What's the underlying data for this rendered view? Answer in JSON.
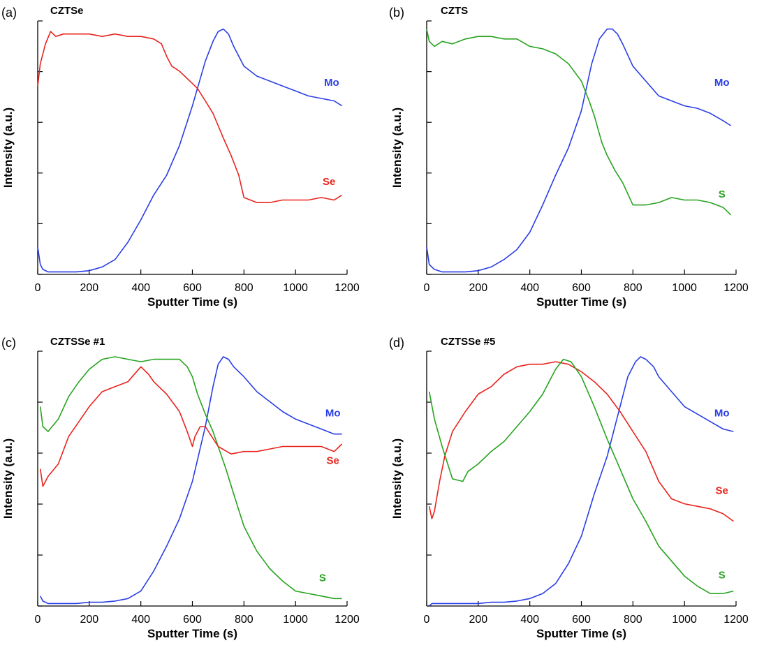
{
  "colors": {
    "Mo": "#2a3ee6",
    "Se": "#e8231d",
    "S": "#27a31f"
  },
  "chart_data": [
    {
      "type": "line",
      "letter": "(a)",
      "title": "CZTSe",
      "xlabel": "Sputter Time (s)",
      "ylabel": "Intensity (a.u.)",
      "xlim": [
        0,
        1200
      ],
      "ylim": [
        0,
        100
      ],
      "xticks": [
        "0",
        "200",
        "400",
        "600",
        "800",
        "1000",
        "1200"
      ],
      "series": [
        {
          "name": "Mo",
          "color": "#2a3ee6",
          "label_at": [
            1140,
            76
          ],
          "x": [
            0,
            10,
            20,
            40,
            60,
            100,
            150,
            200,
            250,
            300,
            350,
            400,
            450,
            500,
            550,
            600,
            650,
            680,
            700,
            720,
            740,
            760,
            800,
            850,
            900,
            950,
            1000,
            1050,
            1100,
            1150,
            1180
          ],
          "y": [
            11,
            4,
            2,
            1,
            1,
            1,
            1,
            1.5,
            3,
            6,
            13,
            22,
            32,
            40,
            52,
            68,
            86,
            94,
            98,
            99,
            97,
            92,
            84,
            80,
            78,
            76,
            74,
            72,
            71,
            70,
            68
          ]
        },
        {
          "name": "Se",
          "color": "#e8231d",
          "label_at": [
            1130,
            36
          ],
          "x": [
            0,
            10,
            30,
            50,
            70,
            100,
            150,
            200,
            250,
            300,
            350,
            400,
            450,
            480,
            500,
            520,
            550,
            580,
            600,
            620,
            650,
            680,
            700,
            720,
            750,
            780,
            800,
            850,
            900,
            950,
            1000,
            1050,
            1100,
            1150,
            1180
          ],
          "y": [
            76,
            85,
            93,
            98,
            96,
            97,
            97,
            97,
            96,
            97,
            96,
            96,
            95,
            93,
            88,
            84,
            82,
            79,
            77,
            75,
            70,
            65,
            60,
            55,
            48,
            40,
            31,
            29,
            29,
            30,
            30,
            30,
            31,
            30,
            32
          ]
        }
      ]
    },
    {
      "type": "line",
      "letter": "(b)",
      "title": "CZTS",
      "xlabel": "Sputter Time (s)",
      "ylabel": "Intensity (a.u.)",
      "xlim": [
        0,
        1200
      ],
      "ylim": [
        0,
        100
      ],
      "xticks": [
        "0",
        "200",
        "400",
        "600",
        "800",
        "1000",
        "1200"
      ],
      "series": [
        {
          "name": "Mo",
          "color": "#2a3ee6",
          "label_at": [
            1145,
            76
          ],
          "x": [
            0,
            10,
            30,
            60,
            100,
            150,
            200,
            250,
            300,
            350,
            400,
            450,
            500,
            550,
            600,
            640,
            670,
            700,
            720,
            740,
            760,
            800,
            850,
            900,
            950,
            1000,
            1050,
            1100,
            1150,
            1180
          ],
          "y": [
            11,
            4,
            2,
            1,
            1,
            1,
            1.5,
            3,
            6,
            10,
            17,
            28,
            40,
            51,
            66,
            85,
            95,
            99,
            99,
            97,
            93,
            84,
            78,
            72,
            70,
            68,
            67,
            65,
            62,
            60
          ]
        },
        {
          "name": "S",
          "color": "#27a31f",
          "label_at": [
            1145,
            31
          ],
          "x": [
            0,
            10,
            30,
            60,
            100,
            150,
            200,
            250,
            300,
            350,
            400,
            450,
            500,
            550,
            600,
            630,
            650,
            680,
            700,
            730,
            760,
            800,
            850,
            900,
            950,
            1000,
            1050,
            1100,
            1150,
            1180
          ],
          "y": [
            99,
            94,
            92,
            94,
            93,
            95,
            96,
            96,
            95,
            95,
            92,
            91,
            89,
            85,
            78,
            70,
            64,
            53,
            48,
            42,
            37,
            28,
            28,
            29,
            31,
            30,
            30,
            29,
            27,
            24
          ]
        }
      ]
    },
    {
      "type": "line",
      "letter": "(c)",
      "title": "CZTSSe #1",
      "xlabel": "Sputter Time (s)",
      "ylabel": "Intensity (a.u.)",
      "xlim": [
        0,
        1200
      ],
      "ylim": [
        0,
        100
      ],
      "xticks": [
        "0",
        "200",
        "400",
        "600",
        "800",
        "1000",
        "1200"
      ],
      "series": [
        {
          "name": "Mo",
          "color": "#2a3ee6",
          "label_at": [
            1145,
            76
          ],
          "x": [
            10,
            20,
            40,
            80,
            150,
            200,
            250,
            300,
            350,
            400,
            450,
            500,
            550,
            600,
            650,
            680,
            700,
            720,
            740,
            760,
            800,
            850,
            900,
            950,
            1000,
            1050,
            1100,
            1150,
            1180
          ],
          "y": [
            4,
            2,
            1,
            1,
            1,
            1.5,
            1.5,
            2,
            3,
            6,
            14,
            24,
            35,
            50,
            72,
            88,
            97,
            100,
            99,
            96,
            92,
            86,
            82,
            78,
            75,
            73,
            71,
            69,
            69
          ]
        },
        {
          "name": "S",
          "color": "#27a31f",
          "label_at": [
            1105,
            10
          ],
          "x": [
            10,
            20,
            40,
            80,
            120,
            160,
            200,
            250,
            300,
            350,
            400,
            450,
            500,
            550,
            580,
            600,
            620,
            650,
            680,
            700,
            730,
            760,
            800,
            850,
            900,
            950,
            1000,
            1050,
            1100,
            1150,
            1180
          ],
          "y": [
            80,
            72,
            70,
            75,
            84,
            90,
            95,
            99,
            100,
            99,
            98,
            99,
            99,
            99,
            96,
            92,
            85,
            77,
            70,
            64,
            55,
            45,
            32,
            22,
            15,
            10,
            6,
            5,
            4,
            3,
            3
          ]
        },
        {
          "name": "Se",
          "color": "#e8231d",
          "label_at": [
            1145,
            57
          ],
          "x": [
            10,
            20,
            40,
            80,
            120,
            160,
            200,
            250,
            300,
            350,
            400,
            430,
            450,
            500,
            550,
            580,
            600,
            610,
            630,
            650,
            700,
            750,
            800,
            850,
            900,
            950,
            1000,
            1050,
            1100,
            1150,
            1180
          ],
          "y": [
            55,
            48,
            52,
            57,
            68,
            74,
            80,
            86,
            88,
            90,
            96,
            93,
            90,
            85,
            78,
            70,
            64,
            68,
            72,
            72,
            64,
            61,
            62,
            62,
            63,
            64,
            64,
            64,
            64,
            62,
            65
          ]
        }
      ]
    },
    {
      "type": "line",
      "letter": "(d)",
      "title": "CZTSSe #5",
      "xlabel": "Sputter Time (s)",
      "ylabel": "Intensity (a.u.)",
      "xlim": [
        0,
        1200
      ],
      "ylim": [
        0,
        100
      ],
      "xticks": [
        "0",
        "200",
        "400",
        "600",
        "800",
        "1000",
        "1200"
      ],
      "series": [
        {
          "name": "Mo",
          "color": "#2a3ee6",
          "label_at": [
            1145,
            76
          ],
          "x": [
            10,
            20,
            40,
            80,
            150,
            200,
            250,
            300,
            350,
            400,
            450,
            500,
            550,
            600,
            650,
            700,
            750,
            780,
            810,
            830,
            850,
            880,
            900,
            950,
            1000,
            1050,
            1100,
            1150,
            1190
          ],
          "y": [
            0,
            1,
            1,
            1,
            1,
            1,
            1.5,
            1.5,
            2,
            3,
            5,
            9,
            17,
            28,
            45,
            60,
            80,
            92,
            98,
            100,
            99,
            96,
            92,
            86,
            80,
            77,
            74,
            71,
            70
          ]
        },
        {
          "name": "Se",
          "color": "#e8231d",
          "label_at": [
            1145,
            45
          ],
          "x": [
            10,
            20,
            30,
            50,
            70,
            100,
            150,
            200,
            250,
            300,
            350,
            400,
            450,
            500,
            550,
            600,
            650,
            700,
            750,
            800,
            850,
            900,
            950,
            1000,
            1050,
            1100,
            1150,
            1190
          ],
          "y": [
            40,
            35,
            38,
            50,
            60,
            70,
            78,
            85,
            88,
            93,
            96,
            97,
            97,
            98,
            97,
            94,
            90,
            85,
            78,
            70,
            62,
            50,
            43,
            41,
            40,
            39,
            37,
            34
          ]
        },
        {
          "name": "S",
          "color": "#27a31f",
          "label_at": [
            1145,
            11
          ],
          "x": [
            10,
            30,
            60,
            100,
            140,
            160,
            200,
            250,
            300,
            350,
            400,
            450,
            500,
            530,
            560,
            600,
            650,
            700,
            750,
            800,
            850,
            900,
            950,
            1000,
            1050,
            1100,
            1150,
            1190
          ],
          "y": [
            86,
            75,
            64,
            51,
            50,
            54,
            57,
            62,
            66,
            72,
            78,
            85,
            95,
            99,
            98,
            92,
            80,
            67,
            55,
            43,
            34,
            24,
            18,
            12,
            8,
            5,
            5,
            6
          ]
        }
      ]
    }
  ]
}
